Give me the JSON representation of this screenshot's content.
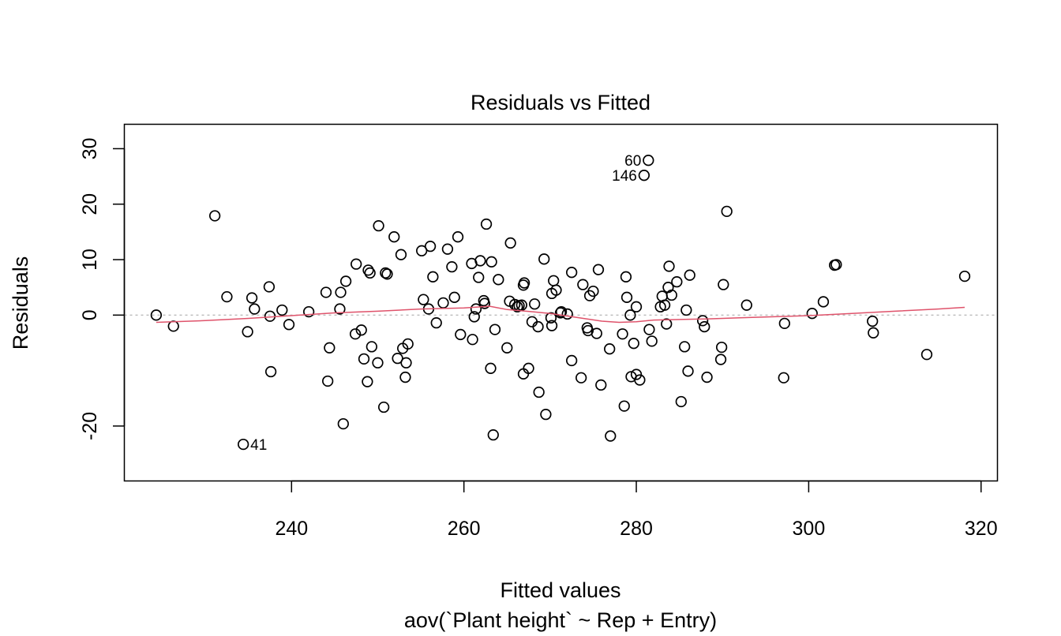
{
  "chart_data": {
    "type": "scatter",
    "title": "Residuals vs Fitted",
    "xlabel": "Fitted values",
    "ylabel": "Residuals",
    "subtitle": "aov(`Plant height` ~ Rep + Entry)",
    "xlim": [
      220.6,
      321.9
    ],
    "ylim": [
      -29.9,
      34.4
    ],
    "xticks": [
      240,
      260,
      280,
      300,
      320
    ],
    "yticks": [
      -20,
      0,
      10,
      20,
      30
    ],
    "ytick_labels": [
      "-20",
      "0",
      "10",
      "20",
      "30"
    ],
    "zero_line": 0,
    "colors": {
      "points": "#000000",
      "smooth": "#DF536B",
      "zero_line": "#BEBEBE",
      "box": "#000000"
    },
    "labeled_points": [
      {
        "label": "60",
        "x": 281.4,
        "y": 27.9,
        "side": "left"
      },
      {
        "label": "146",
        "x": 280.9,
        "y": 25.2,
        "side": "left"
      },
      {
        "label": "41",
        "x": 234.4,
        "y": -23.3,
        "side": "right"
      }
    ],
    "points": [
      [
        224.3,
        0.0
      ],
      [
        226.3,
        -2.0
      ],
      [
        231.1,
        17.9
      ],
      [
        232.5,
        3.3
      ],
      [
        234.4,
        -23.3
      ],
      [
        234.9,
        -3.0
      ],
      [
        235.4,
        3.1
      ],
      [
        235.7,
        1.1
      ],
      [
        237.4,
        5.1
      ],
      [
        237.5,
        -0.2
      ],
      [
        237.6,
        -10.2
      ],
      [
        238.9,
        0.9
      ],
      [
        239.7,
        -1.7
      ],
      [
        242.0,
        0.6
      ],
      [
        244.0,
        4.1
      ],
      [
        244.2,
        -11.9
      ],
      [
        244.4,
        -5.9
      ],
      [
        245.6,
        1.1
      ],
      [
        245.7,
        4.1
      ],
      [
        246.0,
        -19.6
      ],
      [
        246.3,
        6.1
      ],
      [
        247.4,
        -3.4
      ],
      [
        247.5,
        9.2
      ],
      [
        248.1,
        -2.7
      ],
      [
        248.4,
        -7.9
      ],
      [
        248.8,
        -12.0
      ],
      [
        248.9,
        8.1
      ],
      [
        249.1,
        7.6
      ],
      [
        249.3,
        -5.7
      ],
      [
        250.0,
        -8.6
      ],
      [
        250.1,
        16.1
      ],
      [
        250.7,
        -16.6
      ],
      [
        250.9,
        7.6
      ],
      [
        251.1,
        7.4
      ],
      [
        251.9,
        14.1
      ],
      [
        252.3,
        -7.8
      ],
      [
        252.7,
        10.9
      ],
      [
        252.9,
        -6.0
      ],
      [
        253.2,
        -11.2
      ],
      [
        253.3,
        -8.6
      ],
      [
        253.5,
        -5.2
      ],
      [
        255.1,
        11.6
      ],
      [
        255.3,
        2.8
      ],
      [
        255.9,
        1.1
      ],
      [
        256.1,
        12.4
      ],
      [
        256.4,
        6.9
      ],
      [
        256.8,
        -1.4
      ],
      [
        257.6,
        2.2
      ],
      [
        258.1,
        11.9
      ],
      [
        258.6,
        8.7
      ],
      [
        258.9,
        3.2
      ],
      [
        259.3,
        14.1
      ],
      [
        259.6,
        -3.5
      ],
      [
        260.9,
        9.3
      ],
      [
        261.0,
        -4.4
      ],
      [
        261.2,
        -0.3
      ],
      [
        261.4,
        1.1
      ],
      [
        261.7,
        6.8
      ],
      [
        261.9,
        9.8
      ],
      [
        262.3,
        2.6
      ],
      [
        262.4,
        2.1
      ],
      [
        262.6,
        16.4
      ],
      [
        263.1,
        -9.6
      ],
      [
        263.2,
        9.6
      ],
      [
        263.4,
        -21.6
      ],
      [
        263.6,
        -2.6
      ],
      [
        264.0,
        6.4
      ],
      [
        265.0,
        -5.9
      ],
      [
        265.3,
        2.5
      ],
      [
        265.4,
        13.0
      ],
      [
        265.9,
        1.9
      ],
      [
        266.2,
        1.5
      ],
      [
        266.4,
        1.7
      ],
      [
        266.7,
        1.8
      ],
      [
        266.9,
        5.4
      ],
      [
        267.0,
        5.8
      ],
      [
        266.9,
        -10.6
      ],
      [
        267.5,
        -9.6
      ],
      [
        267.9,
        -1.2
      ],
      [
        268.2,
        2.0
      ],
      [
        268.6,
        -2.1
      ],
      [
        268.7,
        -13.9
      ],
      [
        269.3,
        10.1
      ],
      [
        269.5,
        -17.9
      ],
      [
        270.1,
        -0.5
      ],
      [
        270.2,
        -1.9
      ],
      [
        270.2,
        3.9
      ],
      [
        270.4,
        6.2
      ],
      [
        270.7,
        4.5
      ],
      [
        271.2,
        0.4
      ],
      [
        271.3,
        0.6
      ],
      [
        272.0,
        0.2
      ],
      [
        272.5,
        -8.2
      ],
      [
        272.5,
        7.7
      ],
      [
        273.6,
        -11.3
      ],
      [
        273.8,
        5.5
      ],
      [
        274.3,
        -2.3
      ],
      [
        274.4,
        -2.8
      ],
      [
        274.6,
        3.5
      ],
      [
        275.0,
        4.3
      ],
      [
        275.4,
        -3.3
      ],
      [
        275.6,
        8.2
      ],
      [
        275.9,
        -12.6
      ],
      [
        276.9,
        -6.1
      ],
      [
        277.0,
        -21.8
      ],
      [
        278.4,
        -3.4
      ],
      [
        278.6,
        -16.4
      ],
      [
        278.8,
        6.9
      ],
      [
        278.9,
        3.2
      ],
      [
        279.3,
        0.0
      ],
      [
        279.4,
        -11.1
      ],
      [
        279.7,
        -5.1
      ],
      [
        280.0,
        1.5
      ],
      [
        280.0,
        -10.7
      ],
      [
        280.4,
        -11.7
      ],
      [
        280.9,
        25.2
      ],
      [
        281.4,
        27.9
      ],
      [
        281.5,
        -2.6
      ],
      [
        281.8,
        -4.7
      ],
      [
        282.8,
        1.5
      ],
      [
        283.0,
        3.4
      ],
      [
        283.3,
        1.8
      ],
      [
        283.5,
        -1.6
      ],
      [
        283.7,
        5.0
      ],
      [
        283.8,
        8.8
      ],
      [
        284.1,
        3.6
      ],
      [
        284.7,
        6.0
      ],
      [
        285.2,
        -15.6
      ],
      [
        285.6,
        -5.7
      ],
      [
        285.8,
        0.9
      ],
      [
        286.0,
        -10.1
      ],
      [
        286.2,
        7.2
      ],
      [
        287.7,
        -1.0
      ],
      [
        287.9,
        -2.1
      ],
      [
        288.2,
        -11.2
      ],
      [
        289.8,
        -8.0
      ],
      [
        289.9,
        -5.8
      ],
      [
        290.1,
        5.5
      ],
      [
        290.5,
        18.7
      ],
      [
        292.8,
        1.8
      ],
      [
        297.1,
        -11.3
      ],
      [
        297.2,
        -1.5
      ],
      [
        300.4,
        0.3
      ],
      [
        301.7,
        2.4
      ],
      [
        303.0,
        9.0
      ],
      [
        303.2,
        9.1
      ],
      [
        307.4,
        -1.1
      ],
      [
        307.5,
        -3.2
      ],
      [
        313.7,
        -7.1
      ],
      [
        318.1,
        7.0
      ]
    ],
    "smooth_line": [
      [
        224.3,
        -1.3
      ],
      [
        230.0,
        -1.0
      ],
      [
        235.0,
        -0.6
      ],
      [
        240.0,
        -0.1
      ],
      [
        245.0,
        0.4
      ],
      [
        250.0,
        0.7
      ],
      [
        255.0,
        1.1
      ],
      [
        260.0,
        1.3
      ],
      [
        263.0,
        1.6
      ],
      [
        265.0,
        1.0
      ],
      [
        268.0,
        0.6
      ],
      [
        270.0,
        0.3
      ],
      [
        273.0,
        -0.4
      ],
      [
        276.0,
        -1.1
      ],
      [
        278.0,
        -1.3
      ],
      [
        280.0,
        -1.2
      ],
      [
        282.0,
        -0.9
      ],
      [
        285.0,
        -0.8
      ],
      [
        288.0,
        -0.7
      ],
      [
        292.0,
        -0.5
      ],
      [
        296.0,
        -0.3
      ],
      [
        300.0,
        -0.1
      ],
      [
        305.0,
        0.3
      ],
      [
        310.0,
        0.7
      ],
      [
        315.0,
        1.1
      ],
      [
        318.1,
        1.4
      ]
    ]
  }
}
